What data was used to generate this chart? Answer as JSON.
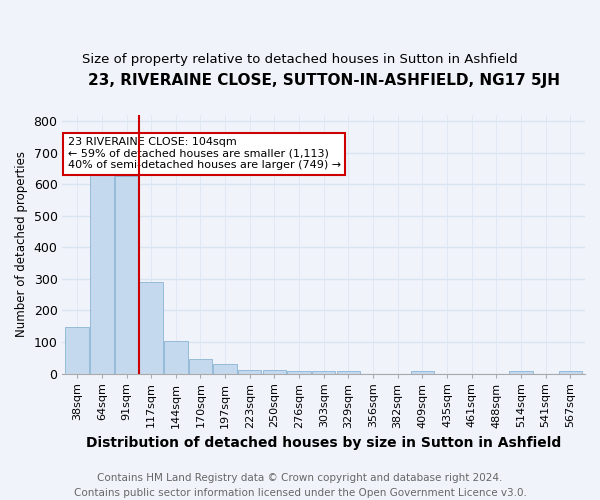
{
  "title": "23, RIVERAINE CLOSE, SUTTON-IN-ASHFIELD, NG17 5JH",
  "subtitle": "Size of property relative to detached houses in Sutton in Ashfield",
  "xlabel": "Distribution of detached houses by size in Sutton in Ashfield",
  "ylabel": "Number of detached properties",
  "footer_line1": "Contains HM Land Registry data © Crown copyright and database right 2024.",
  "footer_line2": "Contains public sector information licensed under the Open Government Licence v3.0.",
  "categories": [
    "38sqm",
    "64sqm",
    "91sqm",
    "117sqm",
    "144sqm",
    "170sqm",
    "197sqm",
    "223sqm",
    "250sqm",
    "276sqm",
    "303sqm",
    "329sqm",
    "356sqm",
    "382sqm",
    "409sqm",
    "435sqm",
    "461sqm",
    "488sqm",
    "514sqm",
    "541sqm",
    "567sqm"
  ],
  "values": [
    148,
    633,
    628,
    290,
    103,
    46,
    31,
    10,
    10,
    8,
    8,
    8,
    0,
    0,
    8,
    0,
    0,
    0,
    8,
    0,
    8
  ],
  "bar_color": "#c5d9ee",
  "bar_edge_color": "#8ab4d4",
  "vline_x": 2,
  "vline_color": "#cc0000",
  "annotation_text": "23 RIVERAINE CLOSE: 104sqm\n← 59% of detached houses are smaller (1,113)\n40% of semi-detached houses are larger (749) →",
  "annotation_box_color": "#ffffff",
  "annotation_box_edge_color": "#cc0000",
  "ylim": [
    0,
    820
  ],
  "yticks": [
    0,
    100,
    200,
    300,
    400,
    500,
    600,
    700,
    800
  ],
  "background_color": "#f0f4fa",
  "grid_color": "#d8e4f0",
  "title_fontsize": 11,
  "subtitle_fontsize": 9.5,
  "xlabel_fontsize": 10,
  "ylabel_fontsize": 8.5,
  "tick_fontsize": 8,
  "footer_fontsize": 7.5,
  "annotation_fontsize": 8
}
